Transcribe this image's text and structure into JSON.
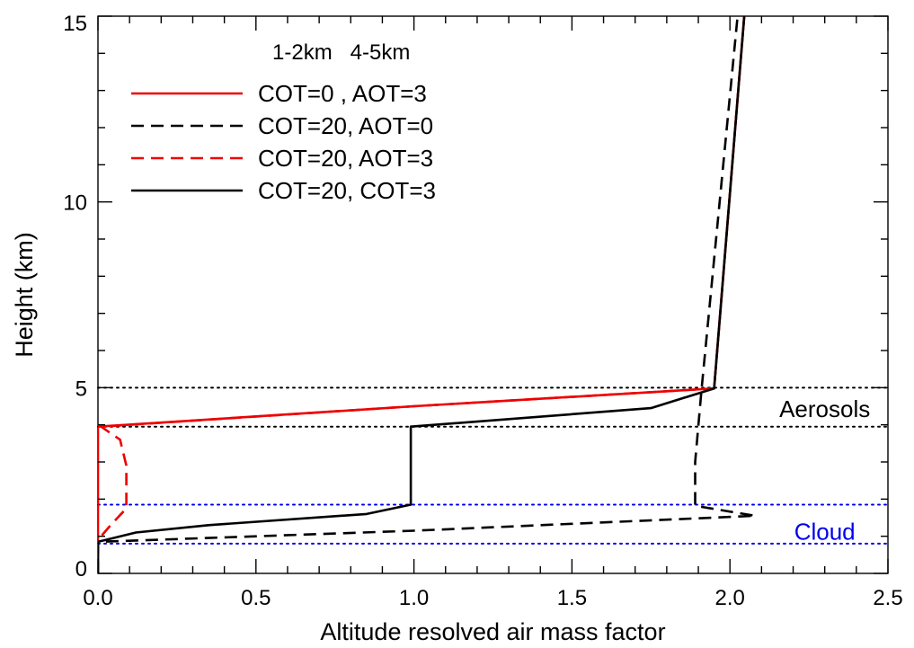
{
  "chart_data": {
    "type": "line",
    "title": "",
    "xlabel": "Altitude resolved air mass factor",
    "ylabel": "Height (km)",
    "xlim": [
      0,
      2.5
    ],
    "ylim": [
      0,
      15
    ],
    "x_ticks": [
      0.0,
      0.5,
      1.0,
      1.5,
      2.0,
      2.5
    ],
    "x_tick_labels": [
      "0.0",
      "0.5",
      "1.0",
      "1.5",
      "2.0",
      "2.5"
    ],
    "y_ticks": [
      0,
      5,
      10,
      15
    ],
    "y_tick_labels": [
      "0",
      "5",
      "10",
      "15"
    ],
    "grid": false,
    "legend_header": "1-2km   4-5km",
    "legend_position": "top-left",
    "series": [
      {
        "name": "COT=0 , AOT=3",
        "color": "#ee0000",
        "dash": "solid",
        "points": [
          [
            0,
            0
          ],
          [
            0,
            1.0
          ],
          [
            0,
            3.95
          ],
          [
            1.0,
            4.5
          ],
          [
            1.95,
            4.98
          ],
          [
            2.05,
            15.5
          ]
        ]
      },
      {
        "name": "COT=20, AOT=0",
        "color": "#000000",
        "dash": "dashed",
        "points": [
          [
            0,
            0
          ],
          [
            0,
            0.85
          ],
          [
            1.0,
            1.15
          ],
          [
            2.08,
            1.55
          ],
          [
            1.89,
            1.82
          ],
          [
            1.89,
            3.0
          ],
          [
            1.91,
            4.95
          ],
          [
            2.03,
            15.5
          ]
        ]
      },
      {
        "name": "COT=20, AOT=3",
        "color": "#ee0000",
        "dash": "dashed",
        "points": [
          [
            0,
            0
          ],
          [
            0,
            0.9
          ],
          [
            0.04,
            1.3
          ],
          [
            0.09,
            1.75
          ],
          [
            0.09,
            2.9
          ],
          [
            0.07,
            3.6
          ],
          [
            0.01,
            3.95
          ],
          [
            1.0,
            4.5
          ],
          [
            1.95,
            4.98
          ],
          [
            2.05,
            15.5
          ]
        ]
      },
      {
        "name": "COT=20, COT=3",
        "color": "#000000",
        "dash": "solid",
        "points": [
          [
            0,
            0
          ],
          [
            0,
            0.85
          ],
          [
            0.12,
            1.1
          ],
          [
            0.35,
            1.3
          ],
          [
            0.85,
            1.6
          ],
          [
            0.99,
            1.85
          ],
          [
            0.99,
            3.95
          ],
          [
            1.75,
            4.45
          ],
          [
            1.95,
            4.98
          ],
          [
            2.05,
            15.5
          ]
        ]
      }
    ],
    "reference_lines": [
      {
        "y": 5.0,
        "color": "#000000"
      },
      {
        "y": 3.95,
        "color": "#000000"
      },
      {
        "y": 1.85,
        "color": "#0000ee"
      },
      {
        "y": 0.8,
        "color": "#0000ee"
      }
    ],
    "annotations": [
      {
        "text": "Aerosols",
        "x": 2.3,
        "y": 4.45,
        "color": "#000000"
      },
      {
        "text": "Cloud",
        "x": 2.3,
        "y": 1.15,
        "color": "#0000ee"
      }
    ]
  }
}
